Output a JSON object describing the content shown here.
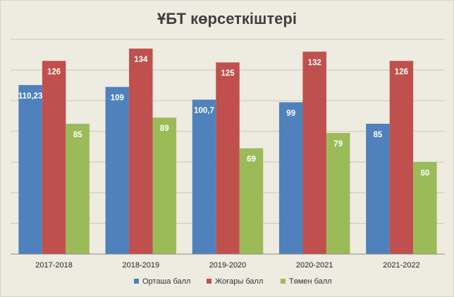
{
  "chart_data": {
    "type": "bar",
    "title": "ҰБТ көрсеткіштері",
    "categories": [
      "2017-2018",
      "2018-2019",
      "2019-2020",
      "2020-2021",
      "2021-2022"
    ],
    "series": [
      {
        "name": "Орташа балл",
        "color": "#4F81BD",
        "values": [
          110.23,
          109,
          100.7,
          99,
          85
        ],
        "labels": [
          "110,23",
          "109",
          "100,7",
          "99",
          "85"
        ]
      },
      {
        "name": "Жоғары балл",
        "color": "#C0504D",
        "values": [
          126,
          134,
          125,
          132,
          126
        ],
        "labels": [
          "126",
          "134",
          "125",
          "132",
          "126"
        ]
      },
      {
        "name": "Төмен балл",
        "color": "#9BBB59",
        "values": [
          85,
          89,
          69,
          79,
          60
        ],
        "labels": [
          "85",
          "89",
          "69",
          "79",
          "60"
        ]
      }
    ],
    "ylim": [
      0,
      140
    ],
    "y_gridlines": [
      0,
      20,
      40,
      60,
      80,
      100,
      120,
      140
    ],
    "grid": true,
    "y_tick_labels_visible": false,
    "legend_position": "bottom"
  }
}
